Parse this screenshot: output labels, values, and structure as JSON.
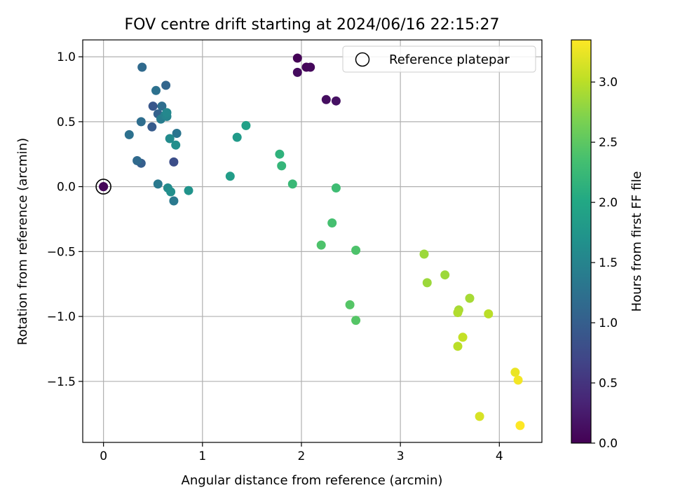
{
  "chart_data": {
    "type": "scatter",
    "title": "FOV centre drift starting at 2024/06/16 22:15:27",
    "xlabel": "Angular distance from reference (arcmin)",
    "ylabel": "Rotation from reference (arcmin)",
    "xlim": [
      -0.21,
      4.43
    ],
    "ylim": [
      -1.97,
      1.13
    ],
    "xticks": [
      0,
      1,
      2,
      3,
      4
    ],
    "yticks": [
      1.0,
      0.5,
      0.0,
      -0.5,
      -1.0,
      -1.5
    ],
    "xtick_labels": [
      "0",
      "1",
      "2",
      "3",
      "4"
    ],
    "ytick_labels": [
      "1.0",
      "0.5",
      "0.0",
      "−0.5",
      "−1.0",
      "−1.5"
    ],
    "grid": true,
    "colormap": "viridis",
    "colorbar": {
      "label": "Hours from first FF file",
      "range": [
        0.0,
        3.35
      ],
      "ticks": [
        0.0,
        0.5,
        1.0,
        1.5,
        2.0,
        2.5,
        3.0
      ],
      "tick_labels": [
        "0.0",
        "0.5",
        "1.0",
        "1.5",
        "2.0",
        "2.5",
        "3.0"
      ]
    },
    "legend": {
      "position": "top-right",
      "entries": [
        "Reference platepar"
      ]
    },
    "reference_point": {
      "x": 0.0,
      "y": 0.0,
      "hours": 0.05
    },
    "points": [
      {
        "x": 0.0,
        "y": 0.0,
        "hours": 0.05
      },
      {
        "x": 1.96,
        "y": 0.99,
        "hours": 0.02
      },
      {
        "x": 2.05,
        "y": 0.92,
        "hours": 0.05
      },
      {
        "x": 2.09,
        "y": 0.92,
        "hours": 0.07
      },
      {
        "x": 1.96,
        "y": 0.88,
        "hours": 0.1
      },
      {
        "x": 2.25,
        "y": 0.67,
        "hours": 0.12
      },
      {
        "x": 2.35,
        "y": 0.66,
        "hours": 0.15
      },
      {
        "x": 0.71,
        "y": 0.19,
        "hours": 0.8
      },
      {
        "x": 0.5,
        "y": 0.62,
        "hours": 0.9
      },
      {
        "x": 0.49,
        "y": 0.46,
        "hours": 0.95
      },
      {
        "x": 0.38,
        "y": 0.18,
        "hours": 1.0
      },
      {
        "x": 0.55,
        "y": 0.56,
        "hours": 1.05
      },
      {
        "x": 0.63,
        "y": 0.78,
        "hours": 1.1
      },
      {
        "x": 0.39,
        "y": 0.92,
        "hours": 1.15
      },
      {
        "x": 0.34,
        "y": 0.2,
        "hours": 1.15
      },
      {
        "x": 0.38,
        "y": 0.5,
        "hours": 1.2
      },
      {
        "x": 0.59,
        "y": 0.62,
        "hours": 1.2
      },
      {
        "x": 0.26,
        "y": 0.4,
        "hours": 1.25
      },
      {
        "x": 0.53,
        "y": 0.74,
        "hours": 1.25
      },
      {
        "x": 0.74,
        "y": 0.41,
        "hours": 1.3
      },
      {
        "x": 0.55,
        "y": 0.02,
        "hours": 1.35
      },
      {
        "x": 0.71,
        "y": -0.11,
        "hours": 1.35
      },
      {
        "x": 0.58,
        "y": 0.52,
        "hours": 1.4
      },
      {
        "x": 0.62,
        "y": 0.55,
        "hours": 1.45
      },
      {
        "x": 0.64,
        "y": 0.54,
        "hours": 1.5
      },
      {
        "x": 0.64,
        "y": 0.57,
        "hours": 1.55
      },
      {
        "x": 0.67,
        "y": 0.37,
        "hours": 1.6
      },
      {
        "x": 0.65,
        "y": -0.01,
        "hours": 1.6
      },
      {
        "x": 0.73,
        "y": 0.32,
        "hours": 1.65
      },
      {
        "x": 0.68,
        "y": -0.04,
        "hours": 1.65
      },
      {
        "x": 0.86,
        "y": -0.03,
        "hours": 1.7
      },
      {
        "x": 1.35,
        "y": 0.38,
        "hours": 1.8
      },
      {
        "x": 1.28,
        "y": 0.08,
        "hours": 1.85
      },
      {
        "x": 1.44,
        "y": 0.47,
        "hours": 1.9
      },
      {
        "x": 1.78,
        "y": 0.25,
        "hours": 2.15
      },
      {
        "x": 1.8,
        "y": 0.16,
        "hours": 2.2
      },
      {
        "x": 1.91,
        "y": 0.02,
        "hours": 2.25
      },
      {
        "x": 2.35,
        "y": -0.01,
        "hours": 2.3
      },
      {
        "x": 2.31,
        "y": -0.28,
        "hours": 2.35
      },
      {
        "x": 2.2,
        "y": -0.45,
        "hours": 2.4
      },
      {
        "x": 2.55,
        "y": -0.49,
        "hours": 2.4
      },
      {
        "x": 2.49,
        "y": -0.91,
        "hours": 2.45
      },
      {
        "x": 2.55,
        "y": -1.03,
        "hours": 2.45
      },
      {
        "x": 3.24,
        "y": -0.52,
        "hours": 2.85
      },
      {
        "x": 3.27,
        "y": -0.74,
        "hours": 2.85
      },
      {
        "x": 3.45,
        "y": -0.68,
        "hours": 2.85
      },
      {
        "x": 3.7,
        "y": -0.86,
        "hours": 2.9
      },
      {
        "x": 3.59,
        "y": -0.95,
        "hours": 2.9
      },
      {
        "x": 3.58,
        "y": -0.97,
        "hours": 2.95
      },
      {
        "x": 3.89,
        "y": -0.98,
        "hours": 3.0
      },
      {
        "x": 3.58,
        "y": -1.23,
        "hours": 3.0
      },
      {
        "x": 3.63,
        "y": -1.16,
        "hours": 3.05
      },
      {
        "x": 3.8,
        "y": -1.77,
        "hours": 3.15
      },
      {
        "x": 4.16,
        "y": -1.43,
        "hours": 3.25
      },
      {
        "x": 4.19,
        "y": -1.49,
        "hours": 3.3
      },
      {
        "x": 4.21,
        "y": -1.84,
        "hours": 3.35
      }
    ]
  },
  "colors": {
    "grid": "#b0b0b0",
    "axis": "#000000",
    "background": "#ffffff",
    "legend_border": "#cccccc"
  }
}
